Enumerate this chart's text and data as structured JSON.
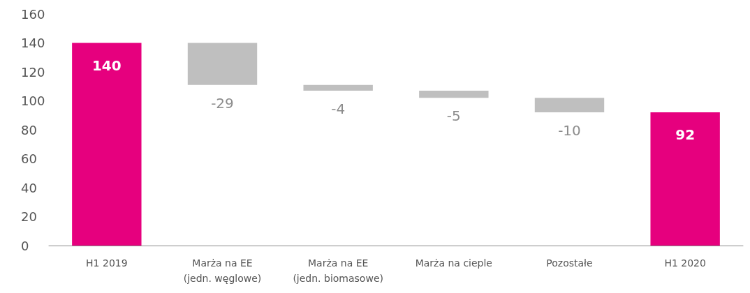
{
  "chart_data": {
    "type": "bar",
    "categories": [
      "H1 2019",
      "Marża na EE\n(jedn. węglowe)",
      "Marża na EE\n(jedn. biomasowe)",
      "Marża na cieple",
      "Pozostałe",
      "H1 2020"
    ],
    "values": [
      140,
      -29,
      -4,
      -5,
      -10,
      92
    ],
    "base": [
      0,
      140,
      111,
      107,
      102,
      0
    ],
    "colors": [
      "#e6007e",
      "#bfbfbf",
      "#bfbfbf",
      "#bfbfbf",
      "#bfbfbf",
      "#e6007e"
    ],
    "value_labels": [
      "140",
      "-29",
      "-4",
      "-5",
      "-10",
      "92"
    ],
    "ylim": [
      0,
      160
    ],
    "yticks": [
      0,
      20,
      40,
      60,
      80,
      100,
      120,
      140,
      160
    ],
    "grid": false
  }
}
